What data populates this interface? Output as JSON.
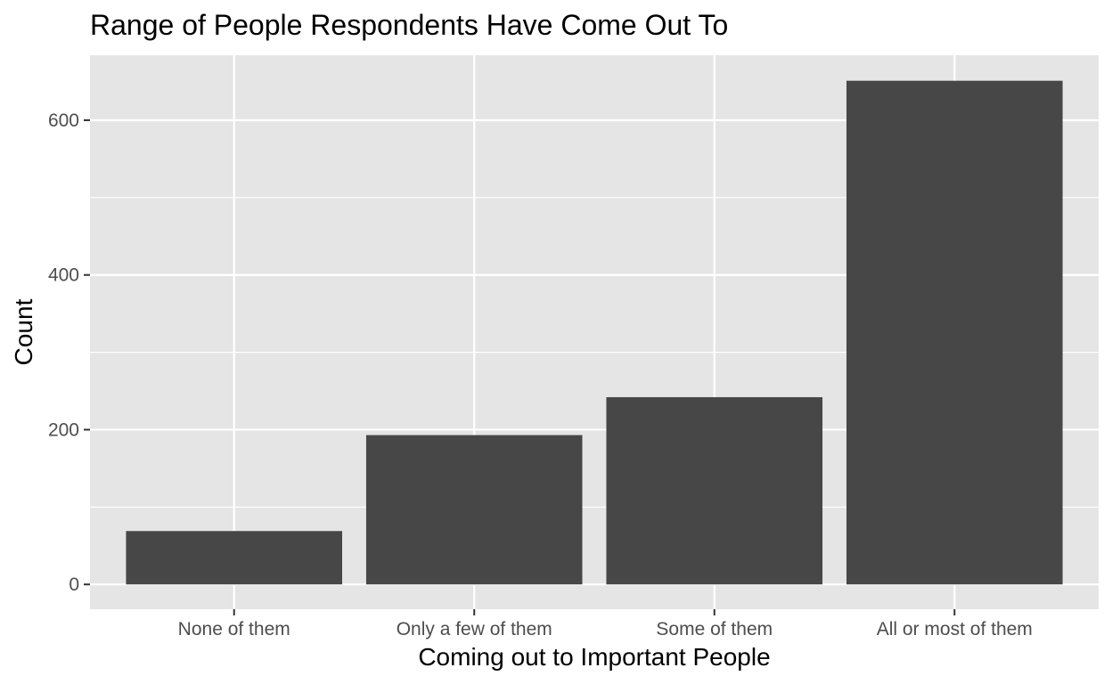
{
  "chart_data": {
    "type": "bar",
    "title": "Range of People Respondents Have Come Out To",
    "xlabel": "Coming out to Important People",
    "ylabel": "Count",
    "categories": [
      "None of them",
      "Only a few of them",
      "Some of them",
      "All or most of them"
    ],
    "values": [
      69,
      193,
      242,
      651
    ],
    "ylim": [
      -32,
      684
    ],
    "yticks": [
      0,
      200,
      400,
      600
    ],
    "ytick_labels": [
      "0",
      "200",
      "400",
      "600"
    ],
    "grid": true,
    "legend": "none",
    "colors": {
      "bar": "#474747",
      "panel_background": "#e5e5e5",
      "grid": "#ffffff",
      "tick": "#333333"
    }
  }
}
